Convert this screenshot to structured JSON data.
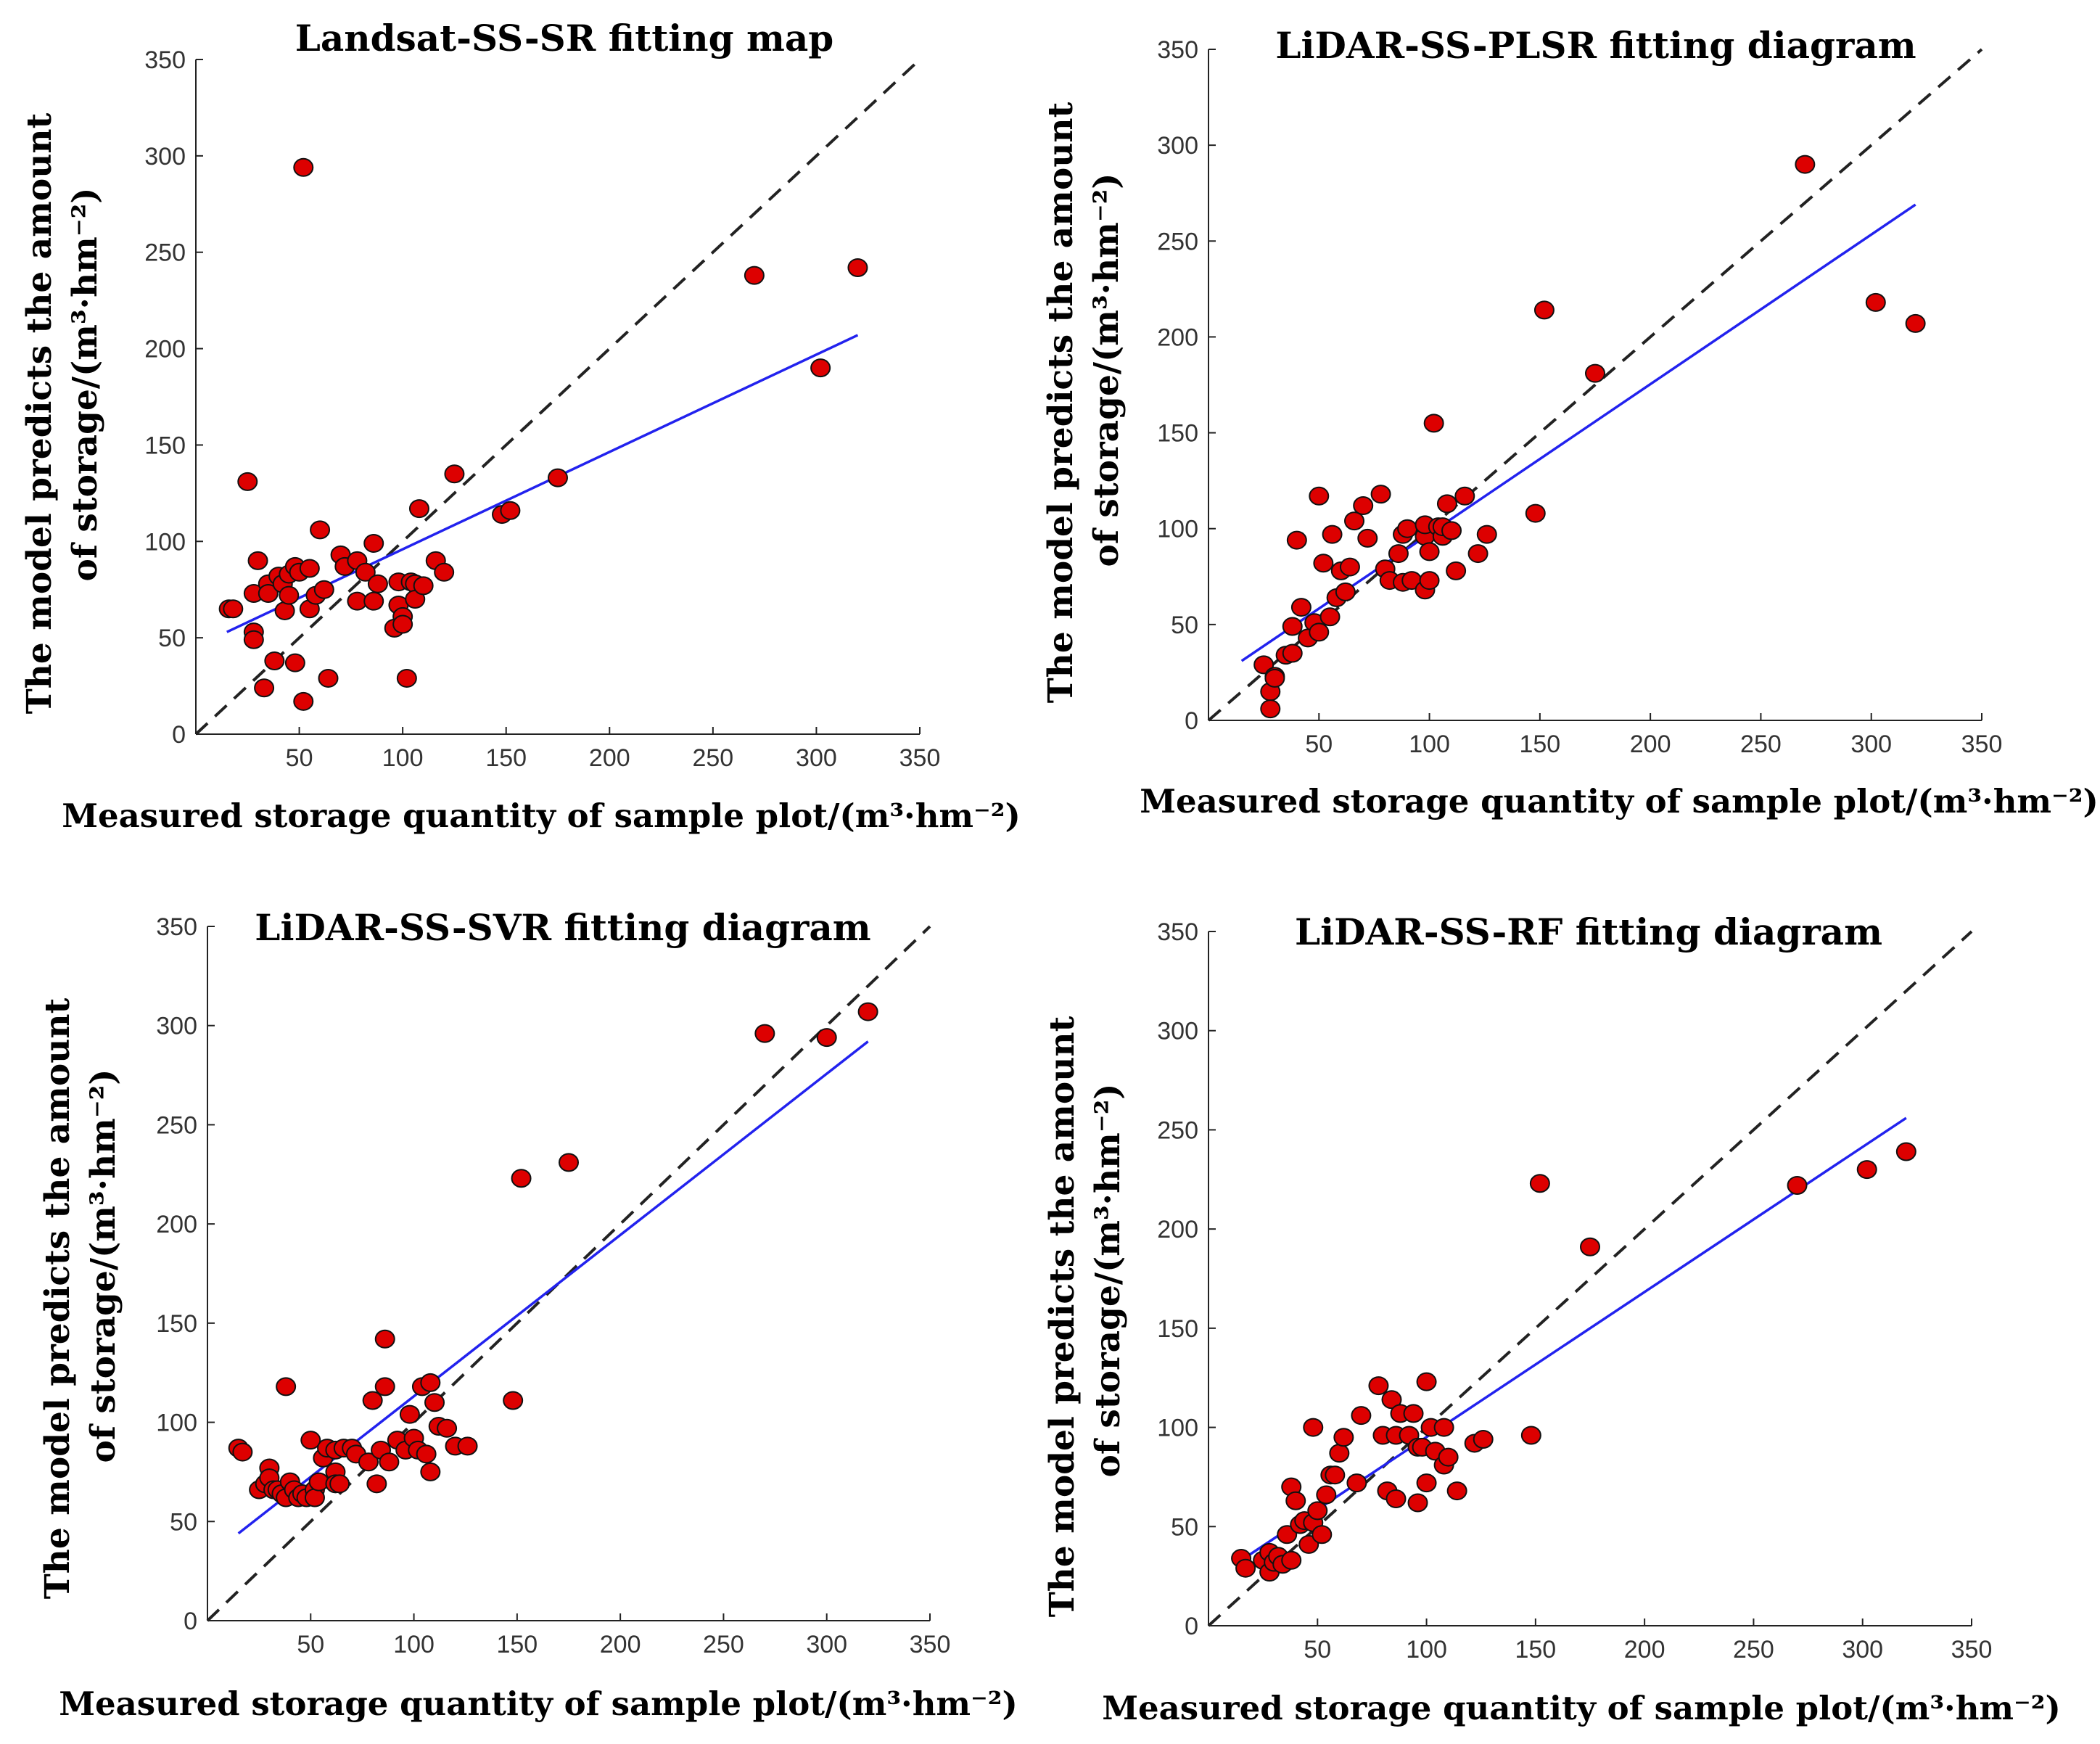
{
  "colors": {
    "points": "#dd0000",
    "fit": "#2222ee",
    "reference": "#222222"
  },
  "chart_data": [
    {
      "type": "scatter",
      "title": "Landsat-SS-SR fitting map",
      "xlabel": "Measured storage quantity of sample plot/(m³·hm⁻²)",
      "ylabel_line1": "The model predicts the amount",
      "ylabel_line2": "of storage/(m³·hm⁻²)",
      "xlim": [
        0,
        350
      ],
      "ylim": [
        0,
        350
      ],
      "xticks": [
        "50",
        "100",
        "150",
        "200",
        "250",
        "300",
        "350"
      ],
      "yticks": [
        "0",
        "50",
        "100",
        "150",
        "200",
        "250",
        "300",
        "350"
      ],
      "reference_line": [
        [
          0,
          0
        ],
        [
          350,
          350
        ]
      ],
      "fit_line": [
        [
          15,
          53
        ],
        [
          320,
          207
        ]
      ],
      "points": [
        [
          16,
          65
        ],
        [
          18,
          65
        ],
        [
          25,
          131
        ],
        [
          28,
          53
        ],
        [
          28,
          49
        ],
        [
          28,
          73
        ],
        [
          30,
          90
        ],
        [
          33,
          24
        ],
        [
          35,
          78
        ],
        [
          35,
          73
        ],
        [
          38,
          38
        ],
        [
          40,
          82
        ],
        [
          42,
          78
        ],
        [
          43,
          64
        ],
        [
          45,
          83
        ],
        [
          45,
          72
        ],
        [
          48,
          37
        ],
        [
          48,
          87
        ],
        [
          50,
          84
        ],
        [
          52,
          17
        ],
        [
          52,
          294
        ],
        [
          55,
          86
        ],
        [
          55,
          65
        ],
        [
          58,
          72
        ],
        [
          60,
          106
        ],
        [
          62,
          75
        ],
        [
          64,
          29
        ],
        [
          70,
          93
        ],
        [
          72,
          87
        ],
        [
          78,
          69
        ],
        [
          78,
          90
        ],
        [
          82,
          84
        ],
        [
          86,
          69
        ],
        [
          86,
          99
        ],
        [
          88,
          78
        ],
        [
          96,
          55
        ],
        [
          98,
          67
        ],
        [
          98,
          79
        ],
        [
          100,
          61
        ],
        [
          100,
          57
        ],
        [
          102,
          29
        ],
        [
          104,
          79
        ],
        [
          106,
          78
        ],
        [
          106,
          70
        ],
        [
          108,
          117
        ],
        [
          110,
          77
        ],
        [
          116,
          90
        ],
        [
          120,
          84
        ],
        [
          125,
          135
        ],
        [
          148,
          114
        ],
        [
          152,
          116
        ],
        [
          175,
          133
        ],
        [
          270,
          238
        ],
        [
          302,
          190
        ],
        [
          320,
          242
        ]
      ]
    },
    {
      "type": "scatter",
      "title": "LiDAR-SS-PLSR fitting diagram",
      "xlabel": "Measured storage quantity of sample plot/(m³·hm⁻²)",
      "ylabel_line1": "The model predicts the amount",
      "ylabel_line2": "of storage/(m³·hm⁻²)",
      "xlim": [
        0,
        350
      ],
      "ylim": [
        0,
        350
      ],
      "xticks": [
        "50",
        "100",
        "150",
        "200",
        "250",
        "300",
        "350"
      ],
      "yticks": [
        "0",
        "50",
        "100",
        "150",
        "200",
        "250",
        "300",
        "350"
      ],
      "reference_line": [
        [
          0,
          0
        ],
        [
          350,
          350
        ]
      ],
      "fit_line": [
        [
          15,
          31
        ],
        [
          320,
          269
        ]
      ],
      "points": [
        [
          25,
          29
        ],
        [
          28,
          15
        ],
        [
          28,
          6
        ],
        [
          30,
          23
        ],
        [
          30,
          22
        ],
        [
          35,
          34
        ],
        [
          38,
          35
        ],
        [
          38,
          49
        ],
        [
          40,
          94
        ],
        [
          42,
          59
        ],
        [
          45,
          43
        ],
        [
          48,
          51
        ],
        [
          50,
          117
        ],
        [
          50,
          46
        ],
        [
          52,
          82
        ],
        [
          55,
          54
        ],
        [
          56,
          97
        ],
        [
          58,
          64
        ],
        [
          60,
          78
        ],
        [
          62,
          67
        ],
        [
          64,
          80
        ],
        [
          66,
          104
        ],
        [
          70,
          112
        ],
        [
          72,
          95
        ],
        [
          78,
          118
        ],
        [
          80,
          79
        ],
        [
          82,
          73
        ],
        [
          86,
          87
        ],
        [
          88,
          72
        ],
        [
          88,
          97
        ],
        [
          90,
          100
        ],
        [
          92,
          73
        ],
        [
          98,
          96
        ],
        [
          98,
          68
        ],
        [
          98,
          102
        ],
        [
          100,
          73
        ],
        [
          100,
          88
        ],
        [
          102,
          155
        ],
        [
          104,
          101
        ],
        [
          106,
          96
        ],
        [
          106,
          101
        ],
        [
          108,
          113
        ],
        [
          110,
          99
        ],
        [
          112,
          78
        ],
        [
          116,
          117
        ],
        [
          122,
          87
        ],
        [
          126,
          97
        ],
        [
          148,
          108
        ],
        [
          152,
          214
        ],
        [
          175,
          181
        ],
        [
          270,
          290
        ],
        [
          302,
          218
        ],
        [
          320,
          207
        ]
      ]
    },
    {
      "type": "scatter",
      "title": "LiDAR-SS-SVR fitting diagram",
      "xlabel": "Measured storage quantity of sample plot/(m³·hm⁻²)",
      "ylabel_line1": "The model predicts the amount",
      "ylabel_line2": "of storage/(m³·hm⁻²)",
      "xlim": [
        0,
        350
      ],
      "ylim": [
        0,
        350
      ],
      "xticks": [
        "50",
        "100",
        "150",
        "200",
        "250",
        "300",
        "350"
      ],
      "yticks": [
        "0",
        "50",
        "100",
        "150",
        "200",
        "250",
        "300",
        "350"
      ],
      "reference_line": [
        [
          0,
          0
        ],
        [
          350,
          350
        ]
      ],
      "fit_line": [
        [
          15,
          44
        ],
        [
          320,
          292
        ]
      ],
      "points": [
        [
          15,
          87
        ],
        [
          17,
          85
        ],
        [
          25,
          66
        ],
        [
          28,
          69
        ],
        [
          30,
          77
        ],
        [
          30,
          72
        ],
        [
          32,
          66
        ],
        [
          34,
          66
        ],
        [
          36,
          64
        ],
        [
          38,
          118
        ],
        [
          38,
          62
        ],
        [
          40,
          70
        ],
        [
          42,
          66
        ],
        [
          44,
          62
        ],
        [
          46,
          64
        ],
        [
          48,
          62
        ],
        [
          50,
          91
        ],
        [
          52,
          66
        ],
        [
          52,
          62
        ],
        [
          54,
          70
        ],
        [
          56,
          82
        ],
        [
          58,
          87
        ],
        [
          62,
          86
        ],
        [
          62,
          75
        ],
        [
          62,
          69
        ],
        [
          64,
          69
        ],
        [
          66,
          87
        ],
        [
          70,
          87
        ],
        [
          72,
          84
        ],
        [
          78,
          80
        ],
        [
          80,
          111
        ],
        [
          82,
          69
        ],
        [
          84,
          86
        ],
        [
          86,
          142
        ],
        [
          86,
          118
        ],
        [
          88,
          80
        ],
        [
          92,
          91
        ],
        [
          96,
          86
        ],
        [
          98,
          104
        ],
        [
          100,
          92
        ],
        [
          102,
          86
        ],
        [
          104,
          118
        ],
        [
          106,
          84
        ],
        [
          108,
          120
        ],
        [
          108,
          75
        ],
        [
          110,
          110
        ],
        [
          112,
          98
        ],
        [
          116,
          97
        ],
        [
          120,
          88
        ],
        [
          126,
          88
        ],
        [
          148,
          111
        ],
        [
          152,
          223
        ],
        [
          175,
          231
        ],
        [
          270,
          296
        ],
        [
          300,
          294
        ],
        [
          320,
          307
        ]
      ]
    },
    {
      "type": "scatter",
      "title": "LiDAR-SS-RF fitting diagram",
      "xlabel": "Measured storage quantity of sample plot/(m³·hm⁻²)",
      "ylabel_line1": "The model predicts the amount",
      "ylabel_line2": "of storage/(m³·hm⁻²)",
      "xlim": [
        0,
        350
      ],
      "ylim": [
        0,
        350
      ],
      "xticks": [
        "50",
        "100",
        "150",
        "200",
        "250",
        "300",
        "350"
      ],
      "yticks": [
        "0",
        "50",
        "100",
        "150",
        "200",
        "250",
        "300",
        "350"
      ],
      "reference_line": [
        [
          0,
          0
        ],
        [
          350,
          350
        ]
      ],
      "fit_line": [
        [
          15,
          33
        ],
        [
          320,
          256
        ]
      ],
      "points": [
        [
          15,
          34
        ],
        [
          17,
          29
        ],
        [
          25,
          33
        ],
        [
          28,
          37
        ],
        [
          28,
          27
        ],
        [
          30,
          32
        ],
        [
          32,
          35
        ],
        [
          34,
          31
        ],
        [
          36,
          46
        ],
        [
          38,
          33
        ],
        [
          38,
          70
        ],
        [
          40,
          63
        ],
        [
          42,
          51
        ],
        [
          44,
          53
        ],
        [
          46,
          41
        ],
        [
          48,
          100
        ],
        [
          48,
          52
        ],
        [
          50,
          58
        ],
        [
          52,
          46
        ],
        [
          54,
          66
        ],
        [
          56,
          76
        ],
        [
          58,
          76
        ],
        [
          60,
          87
        ],
        [
          62,
          95
        ],
        [
          68,
          72
        ],
        [
          70,
          106
        ],
        [
          78,
          121
        ],
        [
          80,
          96
        ],
        [
          82,
          68
        ],
        [
          84,
          114
        ],
        [
          86,
          64
        ],
        [
          86,
          96
        ],
        [
          88,
          107
        ],
        [
          92,
          96
        ],
        [
          94,
          107
        ],
        [
          96,
          62
        ],
        [
          96,
          90
        ],
        [
          98,
          90
        ],
        [
          100,
          123
        ],
        [
          100,
          72
        ],
        [
          102,
          100
        ],
        [
          104,
          88
        ],
        [
          108,
          81
        ],
        [
          108,
          100
        ],
        [
          110,
          85
        ],
        [
          114,
          68
        ],
        [
          122,
          92
        ],
        [
          126,
          94
        ],
        [
          148,
          96
        ],
        [
          152,
          223
        ],
        [
          175,
          191
        ],
        [
          270,
          222
        ],
        [
          302,
          230
        ],
        [
          320,
          239
        ]
      ]
    }
  ]
}
